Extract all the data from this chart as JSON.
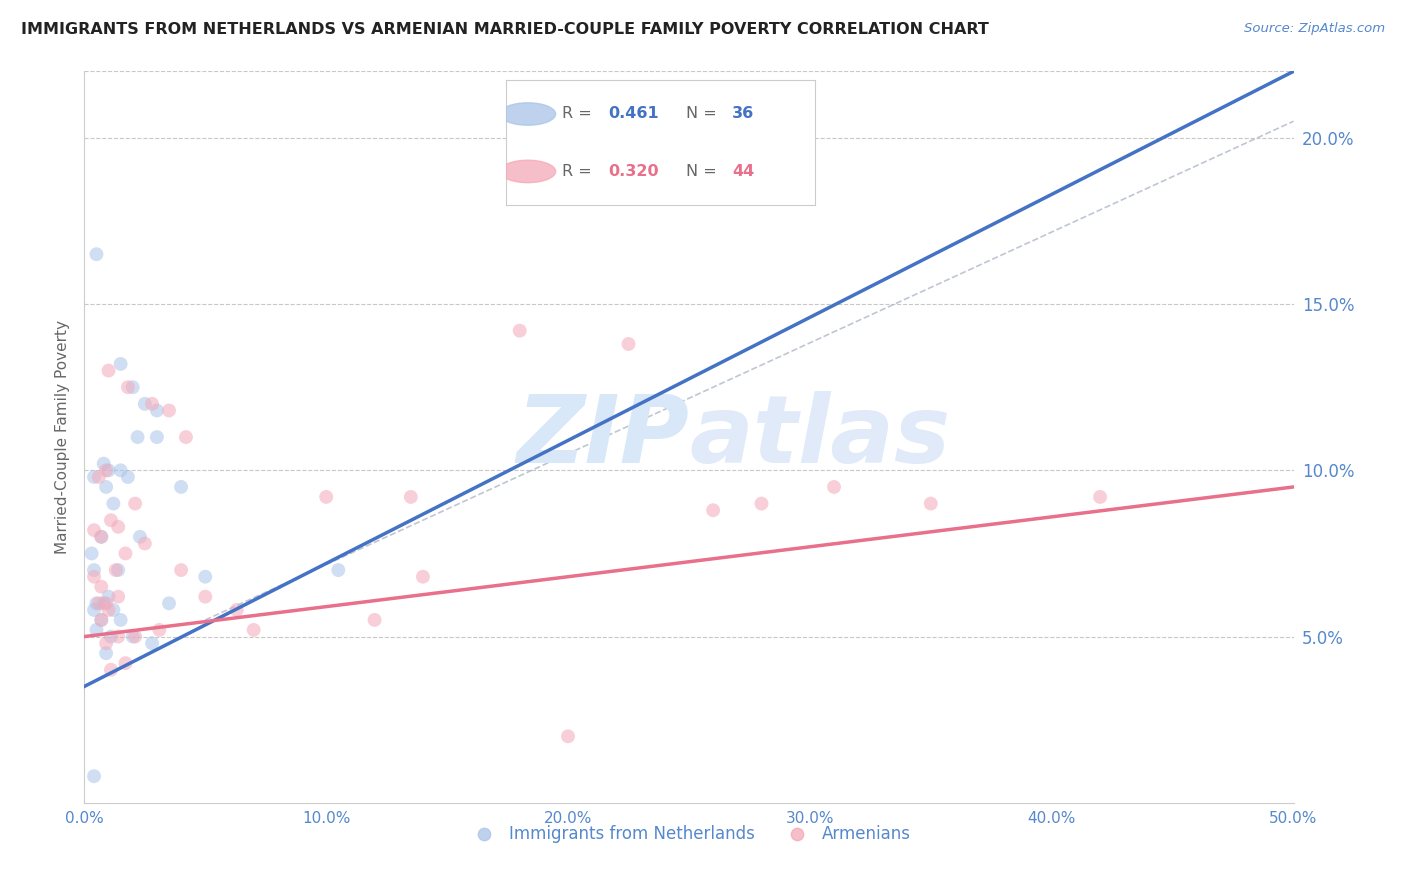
{
  "title": "IMMIGRANTS FROM NETHERLANDS VS ARMENIAN MARRIED-COUPLE FAMILY POVERTY CORRELATION CHART",
  "source": "Source: ZipAtlas.com",
  "ylabel_left": "Married-Couple Family Poverty",
  "x_tick_labels": [
    "0.0%",
    "10.0%",
    "20.0%",
    "30.0%",
    "40.0%",
    "50.0%"
  ],
  "x_ticks": [
    0.0,
    10.0,
    20.0,
    30.0,
    40.0,
    50.0
  ],
  "y_tick_labels_right": [
    "5.0%",
    "10.0%",
    "15.0%",
    "20.0%"
  ],
  "y_ticks_right": [
    5.0,
    10.0,
    15.0,
    20.0
  ],
  "xlim": [
    0.0,
    50.0
  ],
  "ylim": [
    0.0,
    22.0
  ],
  "legend_label_blue": "Immigrants from Netherlands",
  "legend_label_pink": "Armenians",
  "blue_color": "#a8c4e8",
  "pink_color": "#f4a8b8",
  "blue_line_color": "#4472c4",
  "pink_line_color": "#e8708a",
  "axis_label_color": "#5588cc",
  "title_color": "#222222",
  "watermark_color": "#d8e8f8",
  "background_color": "#ffffff",
  "grid_color": "#c8c8c8",
  "dot_size": 100,
  "dot_alpha": 0.55,
  "blue_scatter_x": [
    0.5,
    1.5,
    2.0,
    2.5,
    3.0,
    0.8,
    1.0,
    1.5,
    0.4,
    0.9,
    1.8,
    3.0,
    4.0,
    2.2,
    1.2,
    0.7,
    0.3,
    1.4,
    0.4,
    10.5,
    5.0,
    0.5,
    0.8,
    1.2,
    1.5,
    2.3,
    0.7,
    0.4,
    3.5,
    1.0,
    0.5,
    2.0,
    1.1,
    2.8,
    0.9,
    0.4
  ],
  "blue_scatter_y": [
    16.5,
    13.2,
    12.5,
    12.0,
    11.8,
    10.2,
    10.0,
    10.0,
    9.8,
    9.5,
    9.8,
    11.0,
    9.5,
    11.0,
    9.0,
    8.0,
    7.5,
    7.0,
    7.0,
    7.0,
    6.8,
    6.0,
    6.0,
    5.8,
    5.5,
    8.0,
    5.5,
    5.8,
    6.0,
    6.2,
    5.2,
    5.0,
    5.0,
    4.8,
    4.5,
    0.8
  ],
  "pink_scatter_x": [
    0.4,
    0.7,
    1.1,
    1.4,
    1.7,
    2.1,
    2.5,
    0.9,
    0.6,
    1.0,
    1.8,
    2.8,
    3.5,
    4.2,
    1.3,
    0.7,
    0.4,
    1.4,
    0.6,
    0.9,
    12.0,
    6.3,
    14.0,
    13.5,
    22.5,
    35.0,
    42.0,
    26.0,
    18.0,
    3.1,
    2.1,
    1.1,
    1.7,
    4.0,
    5.0,
    0.7,
    1.0,
    1.4,
    0.9,
    7.0,
    10.0,
    28.0,
    31.0,
    20.0
  ],
  "pink_scatter_y": [
    8.2,
    8.0,
    8.5,
    8.3,
    7.5,
    9.0,
    7.8,
    10.0,
    9.8,
    13.0,
    12.5,
    12.0,
    11.8,
    11.0,
    7.0,
    6.5,
    6.8,
    6.2,
    6.0,
    6.0,
    5.5,
    5.8,
    6.8,
    9.2,
    13.8,
    9.0,
    9.2,
    8.8,
    14.2,
    5.2,
    5.0,
    4.0,
    4.2,
    7.0,
    6.2,
    5.5,
    5.8,
    5.0,
    4.8,
    5.2,
    9.2,
    9.0,
    9.5,
    2.0
  ],
  "blue_line_x": [
    0.0,
    50.0
  ],
  "blue_line_y": [
    3.5,
    22.0
  ],
  "pink_line_x": [
    0.0,
    50.0
  ],
  "pink_line_y": [
    5.0,
    9.5
  ],
  "dash_line_x": [
    5.0,
    50.0
  ],
  "dash_line_y": [
    5.5,
    20.5
  ]
}
